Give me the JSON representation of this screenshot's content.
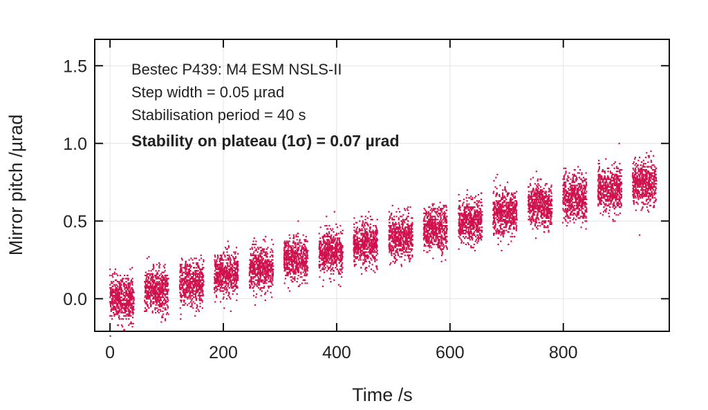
{
  "chart_data": {
    "type": "scatter",
    "xlabel": "Time /s",
    "ylabel": "Mirror pitch /µrad",
    "xlim": [
      -27,
      987
    ],
    "ylim": [
      -0.21,
      1.67
    ],
    "xticks": [
      0,
      200,
      400,
      600,
      800
    ],
    "xtick_labels": [
      "0",
      "200",
      "400",
      "600",
      "800"
    ],
    "yticks": [
      0.0,
      0.5,
      1.0,
      1.5
    ],
    "ytick_labels": [
      "0.0",
      "0.5",
      "1.0",
      "1.5"
    ],
    "grid": true,
    "marker_color": "#d0104c",
    "annotations": [
      "Bestec P439: M4 ESM NSLS-II",
      "Step width = 0.05 µrad",
      "Stabilisation period = 40 s",
      "Stability on plateau (1σ)  = 0.07 µrad"
    ],
    "plateaus": [
      {
        "t_start": 0,
        "t_end": 42,
        "mean": 0.0,
        "sigma": 0.07
      },
      {
        "t_start": 61,
        "t_end": 103,
        "mean": 0.05,
        "sigma": 0.07
      },
      {
        "t_start": 123,
        "t_end": 165,
        "mean": 0.1,
        "sigma": 0.07
      },
      {
        "t_start": 184,
        "t_end": 226,
        "mean": 0.15,
        "sigma": 0.07
      },
      {
        "t_start": 246,
        "t_end": 288,
        "mean": 0.2,
        "sigma": 0.07
      },
      {
        "t_start": 307,
        "t_end": 349,
        "mean": 0.25,
        "sigma": 0.07
      },
      {
        "t_start": 369,
        "t_end": 411,
        "mean": 0.3,
        "sigma": 0.07
      },
      {
        "t_start": 430,
        "t_end": 472,
        "mean": 0.35,
        "sigma": 0.07
      },
      {
        "t_start": 492,
        "t_end": 534,
        "mean": 0.4,
        "sigma": 0.07
      },
      {
        "t_start": 553,
        "t_end": 595,
        "mean": 0.45,
        "sigma": 0.07
      },
      {
        "t_start": 615,
        "t_end": 657,
        "mean": 0.5,
        "sigma": 0.07
      },
      {
        "t_start": 676,
        "t_end": 718,
        "mean": 0.55,
        "sigma": 0.07
      },
      {
        "t_start": 738,
        "t_end": 780,
        "mean": 0.6,
        "sigma": 0.07
      },
      {
        "t_start": 799,
        "t_end": 841,
        "mean": 0.65,
        "sigma": 0.07
      },
      {
        "t_start": 861,
        "t_end": 903,
        "mean": 0.7,
        "sigma": 0.07
      },
      {
        "t_start": 922,
        "t_end": 964,
        "mean": 0.75,
        "sigma": 0.07
      }
    ]
  }
}
